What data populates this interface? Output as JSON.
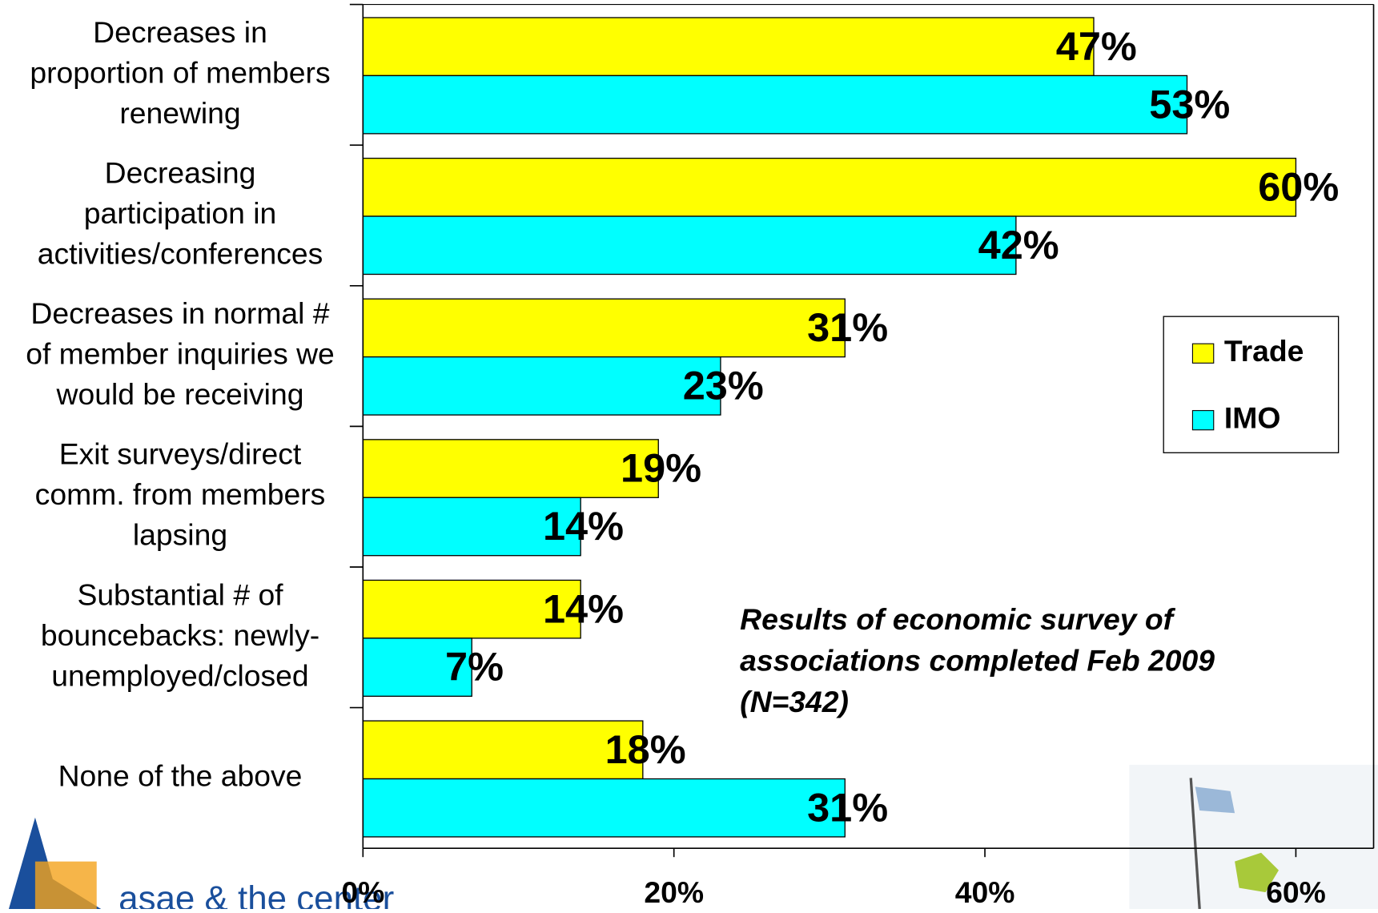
{
  "chart_data": {
    "type": "hbar",
    "categories": [
      "Decreases in\nproportion of members\nrenewing",
      "Decreasing\nparticipation in\nactivities/conferences",
      "Decreases in normal #\nof member inquiries we\nwould be receiving",
      "Exit surveys/direct\ncomm. from members\nlapsing",
      "Substantial # of\nbouncebacks: newly-\nunemployed/closed",
      "None of the above"
    ],
    "series": [
      {
        "name": "Trade",
        "color": "#ffff00",
        "values": [
          47,
          60,
          31,
          19,
          14,
          18
        ],
        "value_labels": [
          "47%",
          "60%",
          "31%",
          "19%",
          "14%",
          "18%"
        ]
      },
      {
        "name": "IMO",
        "color": "#00ffff",
        "values": [
          53,
          42,
          23,
          14,
          7,
          31
        ],
        "value_labels": [
          "53%",
          "42%",
          "23%",
          "14%",
          "7%",
          "31%"
        ]
      }
    ],
    "xlim": [
      0,
      65
    ],
    "xticks": [
      {
        "value": 0,
        "label": "0%"
      },
      {
        "value": 20,
        "label": "20%"
      },
      {
        "value": 40,
        "label": "40%"
      },
      {
        "value": 60,
        "label": "60%"
      }
    ],
    "annotation": "Results of economic survey of\nassociations completed Feb 2009\n(N=342)",
    "logo": "asae & the center",
    "legend": "right"
  }
}
